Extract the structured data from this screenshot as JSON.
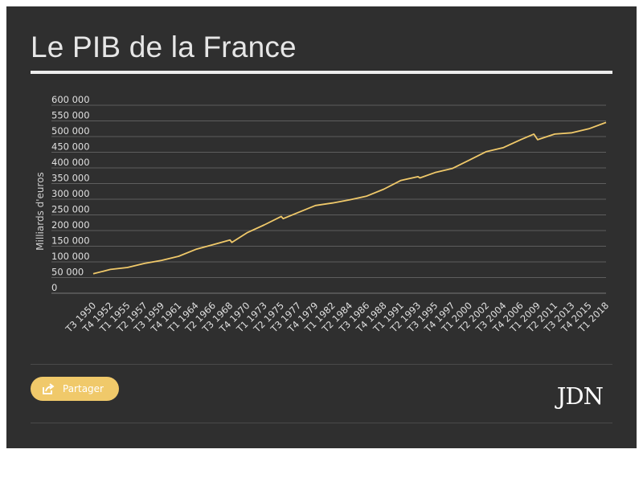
{
  "header": {
    "title": "Le PIB de la France"
  },
  "footer": {
    "share_label": "Partager",
    "logo_text": "JDN"
  },
  "colors": {
    "background": "#2f2f2f",
    "line": "#f0c96a",
    "grid": "#6a6a6a",
    "text": "#e6e6e6"
  },
  "chart_data": {
    "type": "line",
    "title": "Le PIB de la France",
    "xlabel": "",
    "ylabel": "Milliards d'euros",
    "ylim": [
      0,
      600000
    ],
    "yticks": [
      0,
      50000,
      100000,
      150000,
      200000,
      250000,
      300000,
      350000,
      400000,
      450000,
      500000,
      550000,
      600000
    ],
    "ytick_labels": [
      "0",
      "50 000",
      "100 000",
      "150 000",
      "200 000",
      "250 000",
      "300 000",
      "350 000",
      "400 000",
      "450 000",
      "500 000",
      "550 000",
      "600 000"
    ],
    "xlim": [
      "T3 1950",
      "T1 2018"
    ],
    "xtick_labels": [
      "T3 1950",
      "T4 1952",
      "T1 1955",
      "T2 1957",
      "T3 1959",
      "T4 1961",
      "T1 1964",
      "T2 1966",
      "T3 1968",
      "T4 1970",
      "T1 1973",
      "T2 1975",
      "T3 1977",
      "T4 1979",
      "T1 1982",
      "T2 1984",
      "T3 1986",
      "T4 1988",
      "T1 1991",
      "T2 1993",
      "T3 1995",
      "T4 1997",
      "T1 2000",
      "T2 2002",
      "T3 2004",
      "T4 2006",
      "T1 2009",
      "T2 2011",
      "T3 2013",
      "T4 2015",
      "T1 2018"
    ],
    "grid": true,
    "series": [
      {
        "x": [
          "T3 1950",
          "T4 1952",
          "T1 1955",
          "T2 1957",
          "T3 1959",
          "T4 1961",
          "T1 1964",
          "T2 1966",
          "T3 1968",
          "T4 1968",
          "T4 1970",
          "T1 1973",
          "T2 1975",
          "T3 1975",
          "T3 1977",
          "T4 1979",
          "T1 1982",
          "T2 1984",
          "T3 1986",
          "T4 1988",
          "T1 1991",
          "T2 1993",
          "T3 1993",
          "T3 1995",
          "T4 1997",
          "T1 2000",
          "T2 2002",
          "T3 2004",
          "T4 2006",
          "T3 2008",
          "T1 2009",
          "T2 2011",
          "T3 2013",
          "T4 2015",
          "T1 2018"
        ],
        "values": [
          62000,
          76000,
          82000,
          95000,
          105000,
          118000,
          140000,
          155000,
          170000,
          162000,
          193000,
          218000,
          245000,
          238000,
          258000,
          280000,
          288000,
          298000,
          310000,
          332000,
          360000,
          372000,
          368000,
          385000,
          398000,
          425000,
          452000,
          465000,
          490000,
          508000,
          490000,
          508000,
          512000,
          525000,
          545000
        ]
      }
    ]
  }
}
